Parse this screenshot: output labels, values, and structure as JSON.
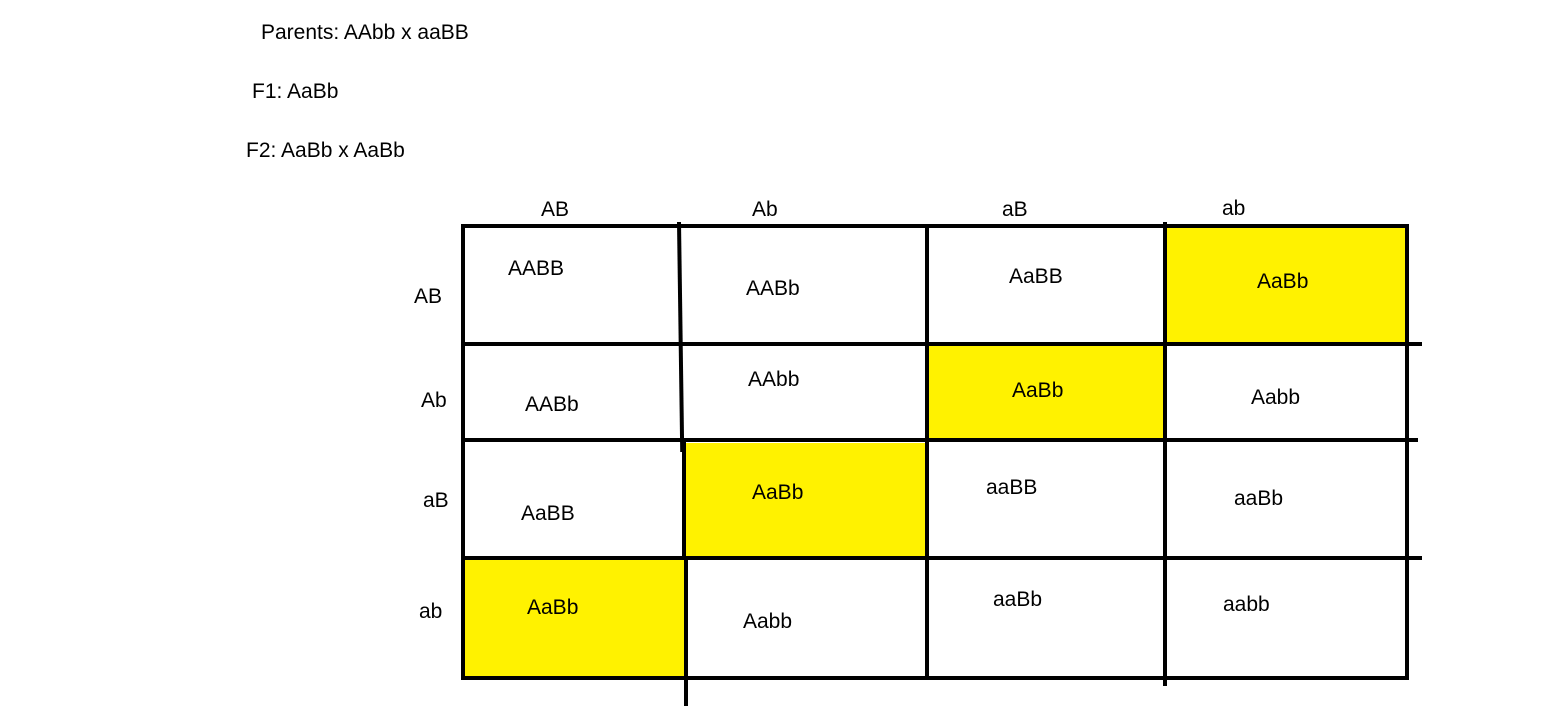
{
  "header": {
    "parents": "Parents: AAbb x aaBB",
    "f1": "F1: AaBb",
    "f2": "F2: AaBb x AaBb"
  },
  "punnett": {
    "column_gametes": [
      "AB",
      "Ab",
      "aB",
      "ab"
    ],
    "row_gametes": [
      "AB",
      "Ab",
      "aB",
      "ab"
    ],
    "cells": [
      [
        "AABB",
        "AABb",
        "AaBB",
        "AaBb"
      ],
      [
        "AABb",
        "AAbb",
        "AaBb",
        "Aabb"
      ],
      [
        "AaBB",
        "AaBb",
        "aaBB",
        "aaBb"
      ],
      [
        "AaBb",
        "Aabb",
        "aaBb",
        "aabb"
      ]
    ],
    "highlighted": [
      [
        0,
        3
      ],
      [
        1,
        2
      ],
      [
        2,
        1
      ],
      [
        3,
        0
      ]
    ],
    "highlight_color": "#FFF200"
  }
}
